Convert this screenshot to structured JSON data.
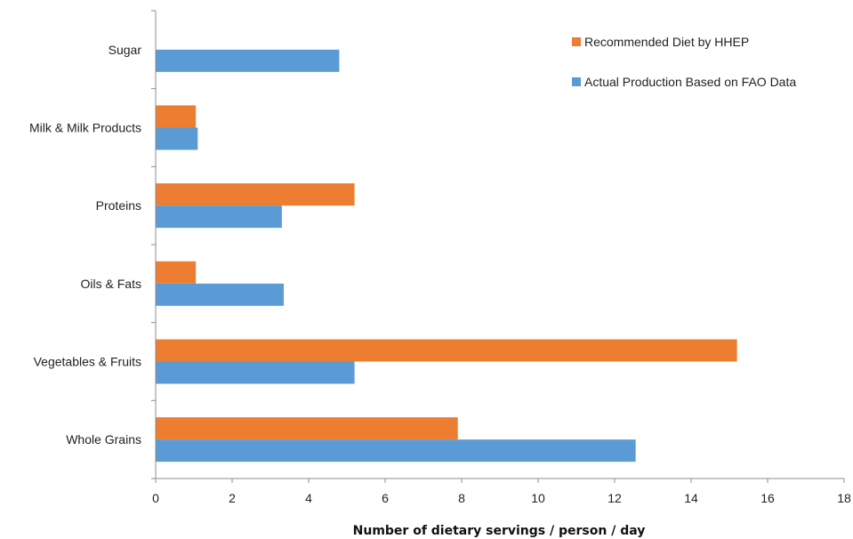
{
  "chart_data": {
    "type": "bar",
    "orientation": "horizontal",
    "title": "",
    "xlabel": "Number of dietary servings / person / day",
    "ylabel": "",
    "xlim": [
      0,
      18
    ],
    "xticks": [
      0,
      2,
      4,
      6,
      8,
      10,
      12,
      14,
      16,
      18
    ],
    "grid": false,
    "legend_position": "top-right",
    "categories": [
      "Whole Grains",
      "Vegetables & Fruits",
      "Oils & Fats",
      "Proteins",
      "Milk & Milk Products",
      "Sugar"
    ],
    "series": [
      {
        "name": "Recommended Diet by HHEP",
        "color": "#ED7D31",
        "values": [
          7.9,
          15.2,
          1.05,
          5.2,
          1.05,
          null
        ]
      },
      {
        "name": "Actual Production Based on FAO Data",
        "color": "#5B9BD5",
        "values": [
          12.55,
          5.2,
          3.35,
          3.3,
          1.1,
          4.8
        ]
      }
    ]
  }
}
